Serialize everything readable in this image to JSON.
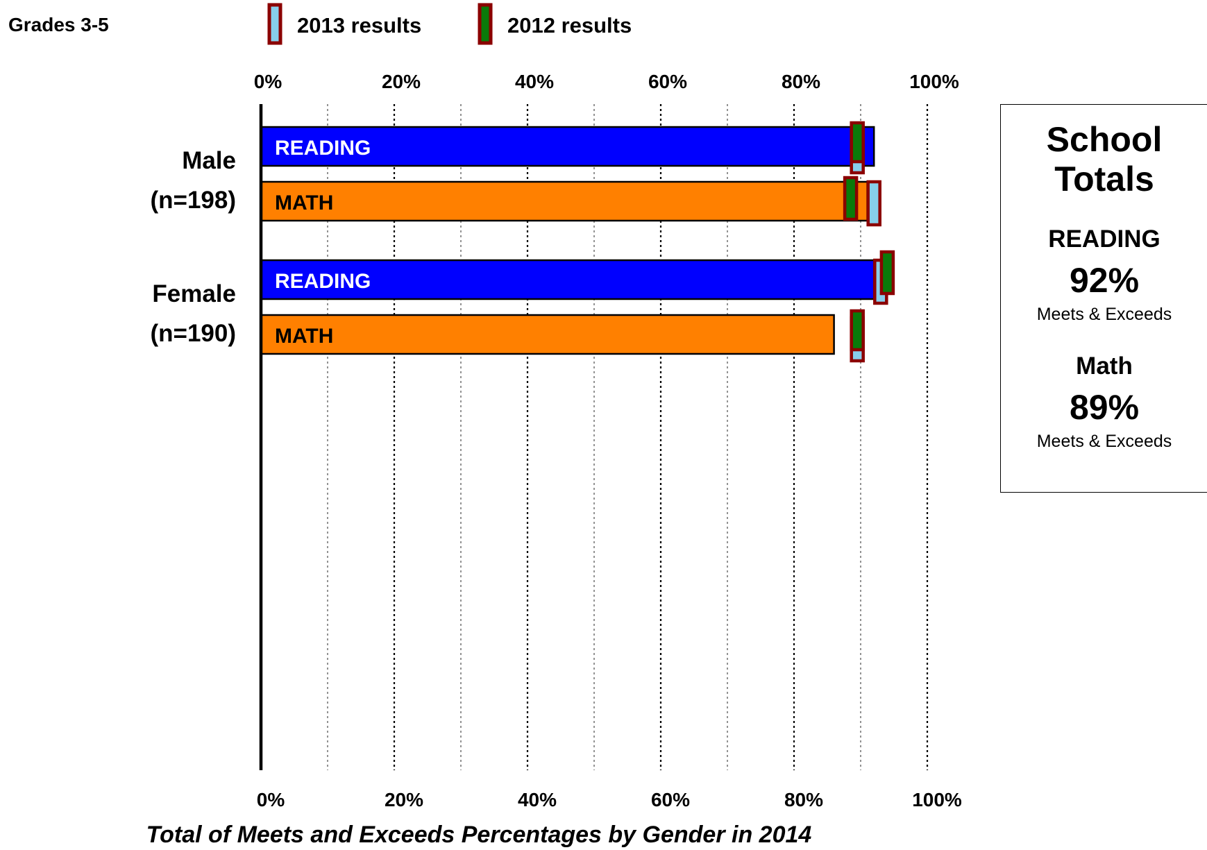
{
  "header": {
    "grade_label": "Grades 3-5"
  },
  "legend": [
    {
      "label": "2013 results",
      "fill": "#87ceeb",
      "border": "#8b0000"
    },
    {
      "label": "2012 results",
      "fill": "#0a7a0a",
      "border": "#8b0000"
    }
  ],
  "colors": {
    "reading": "#0000ff",
    "math": "#ff8000",
    "marker_border": "#8b0000",
    "marker_2013": "#87ceeb",
    "marker_2012": "#0a7a0a"
  },
  "chart_data": {
    "type": "bar",
    "orientation": "horizontal",
    "xlabel": "Total of Meets and Exceeds Percentages by Gender in 2014",
    "xlim": [
      0,
      100
    ],
    "ticks": [
      "0%",
      "20%",
      "40%",
      "60%",
      "80%",
      "100%"
    ],
    "grid": "dotted vertical every 10%",
    "groups": [
      {
        "name": "Male",
        "count": "(n=198)",
        "bars": [
          {
            "label": "READING",
            "subject": "reading",
            "value": 92,
            "r2013": 89.5,
            "r2012": 89.5
          },
          {
            "label": "MATH",
            "subject": "math",
            "value": 91,
            "r2013": 92,
            "r2012": 88.5
          }
        ]
      },
      {
        "name": "Female",
        "count": "(n=190)",
        "bars": [
          {
            "label": "READING",
            "subject": "reading",
            "value": 92,
            "r2013": 93,
            "r2012": 94
          },
          {
            "label": "MATH",
            "subject": "math",
            "value": 86,
            "r2013": 89.5,
            "r2012": 89.5
          }
        ]
      }
    ]
  },
  "totals": {
    "title_line1": "School",
    "title_line2": "Totals",
    "reading_label": "READING",
    "reading_value": "92%",
    "reading_note": "Meets & Exceeds",
    "math_label": "Math",
    "math_value": "89%",
    "math_note": "Meets & Exceeds"
  }
}
